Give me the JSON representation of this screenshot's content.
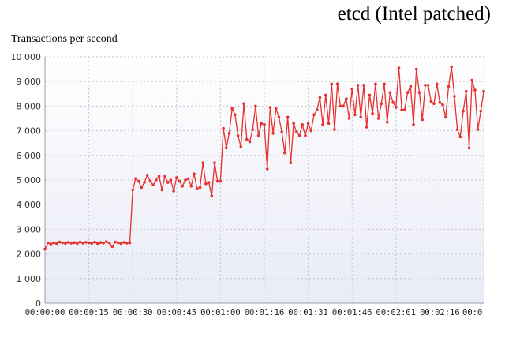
{
  "header": {
    "title": "etcd (Intel patched)",
    "subtitle": "Transactions per second"
  },
  "chart_data": {
    "type": "line",
    "title": "etcd (Intel patched)",
    "ylabel": "Transactions per second",
    "xlabel": "",
    "ylim": [
      0,
      10000
    ],
    "xlim_seconds": [
      0,
      150
    ],
    "yticks": [
      "0",
      "1 000",
      "2 000",
      "3 000",
      "4 000",
      "5 000",
      "6 000",
      "7 000",
      "8 000",
      "9 000",
      "10 000"
    ],
    "xticks": [
      "00:00:00",
      "00:00:15",
      "00:00:30",
      "00:00:45",
      "00:01:00",
      "00:01:16",
      "00:01:31",
      "00:01:46",
      "00:02:01",
      "00:02:16",
      "00:0"
    ],
    "grid": true,
    "line_color": "#e8302e",
    "x_seconds": [
      0,
      1,
      2,
      3,
      4,
      5,
      6,
      7,
      8,
      9,
      10,
      11,
      12,
      13,
      14,
      15,
      16,
      17,
      18,
      19,
      20,
      21,
      22,
      23,
      24,
      25,
      26,
      27,
      28,
      29,
      30,
      31,
      32,
      33,
      34,
      35,
      36,
      37,
      38,
      39,
      40,
      41,
      42,
      43,
      44,
      45,
      46,
      47,
      48,
      49,
      50,
      51,
      52,
      53,
      54,
      55,
      56,
      57,
      58,
      59,
      60,
      61,
      62,
      63,
      64,
      65,
      66,
      67,
      68,
      69,
      70,
      71,
      72,
      73,
      74,
      75,
      76,
      77,
      78,
      79,
      80,
      81,
      82,
      83,
      84,
      85,
      86,
      87,
      88,
      89,
      90,
      91,
      92,
      93,
      94,
      95,
      96,
      97,
      98,
      99,
      100,
      101,
      102,
      103,
      104,
      105,
      106,
      107,
      108,
      109,
      110,
      111,
      112,
      113,
      114,
      115,
      116,
      117,
      118,
      119,
      120,
      121,
      122,
      123,
      124,
      125,
      126,
      127,
      128,
      129,
      130,
      131,
      132,
      133,
      134,
      135,
      136,
      137,
      138,
      139,
      140,
      141,
      142,
      143,
      144,
      145,
      146,
      147,
      148,
      149,
      150
    ],
    "series": [
      {
        "values": [
          2200,
          2450,
          2400,
          2450,
          2420,
          2480,
          2450,
          2430,
          2470,
          2440,
          2460,
          2420,
          2480,
          2440,
          2470,
          2450,
          2430,
          2480,
          2420,
          2460,
          2440,
          2500,
          2450,
          2300,
          2480,
          2450,
          2420,
          2470,
          2440,
          2450,
          4600,
          5050,
          4950,
          4700,
          4900,
          5200,
          4950,
          4800,
          5000,
          5150,
          4600,
          5150,
          4900,
          5000,
          4550,
          5100,
          4950,
          4750,
          5000,
          5050,
          4750,
          5250,
          4650,
          4700,
          5700,
          4850,
          4900,
          4350,
          5700,
          4950,
          4950,
          7100,
          6300,
          6900,
          7900,
          7650,
          6800,
          6350,
          8100,
          6650,
          6550,
          7050,
          8000,
          6800,
          7300,
          7250,
          5450,
          7950,
          6900,
          7900,
          7550,
          6950,
          6100,
          7550,
          5700,
          7300,
          6950,
          6800,
          7250,
          6800,
          7300,
          7000,
          7650,
          7850,
          8350,
          7250,
          8450,
          7300,
          8900,
          7050,
          8900,
          8000,
          8000,
          8300,
          7500,
          8700,
          7650,
          8850,
          7550,
          8850,
          7150,
          8450,
          7700,
          8900,
          7500,
          8100,
          8900,
          7350,
          8550,
          8150,
          7950,
          9550,
          7850,
          7850,
          8550,
          8800,
          7250,
          9500,
          8550,
          7450,
          8850,
          8850,
          8200,
          8100,
          8900,
          8150,
          8050,
          7550,
          8800,
          9600,
          8400,
          7050,
          6750,
          7800,
          8600,
          6300,
          9050,
          8650,
          7050,
          7800,
          8600
        ]
      }
    ]
  }
}
